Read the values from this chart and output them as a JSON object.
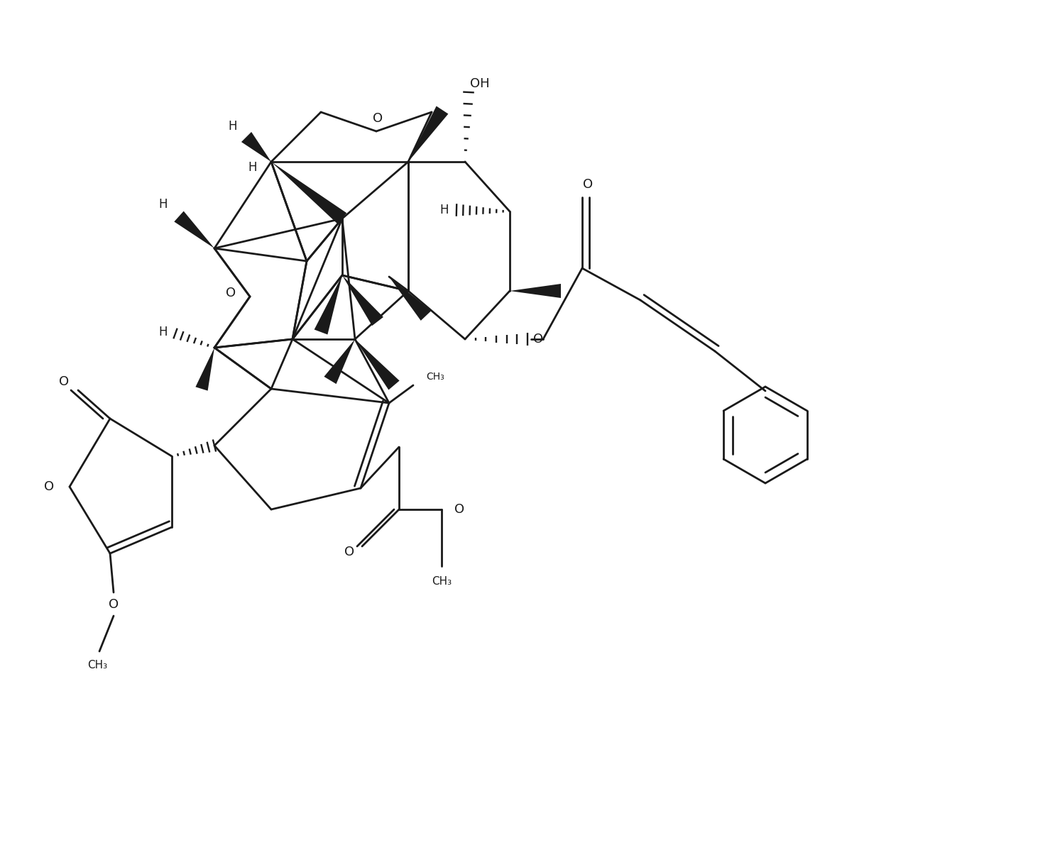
{
  "bg_color": "#ffffff",
  "line_color": "#1a1a1a",
  "line_width": 2.0,
  "figsize": [
    14.86,
    11.98
  ],
  "dpi": 100,
  "xlim": [
    0,
    14.86
  ],
  "ylim": [
    0,
    11.98
  ]
}
